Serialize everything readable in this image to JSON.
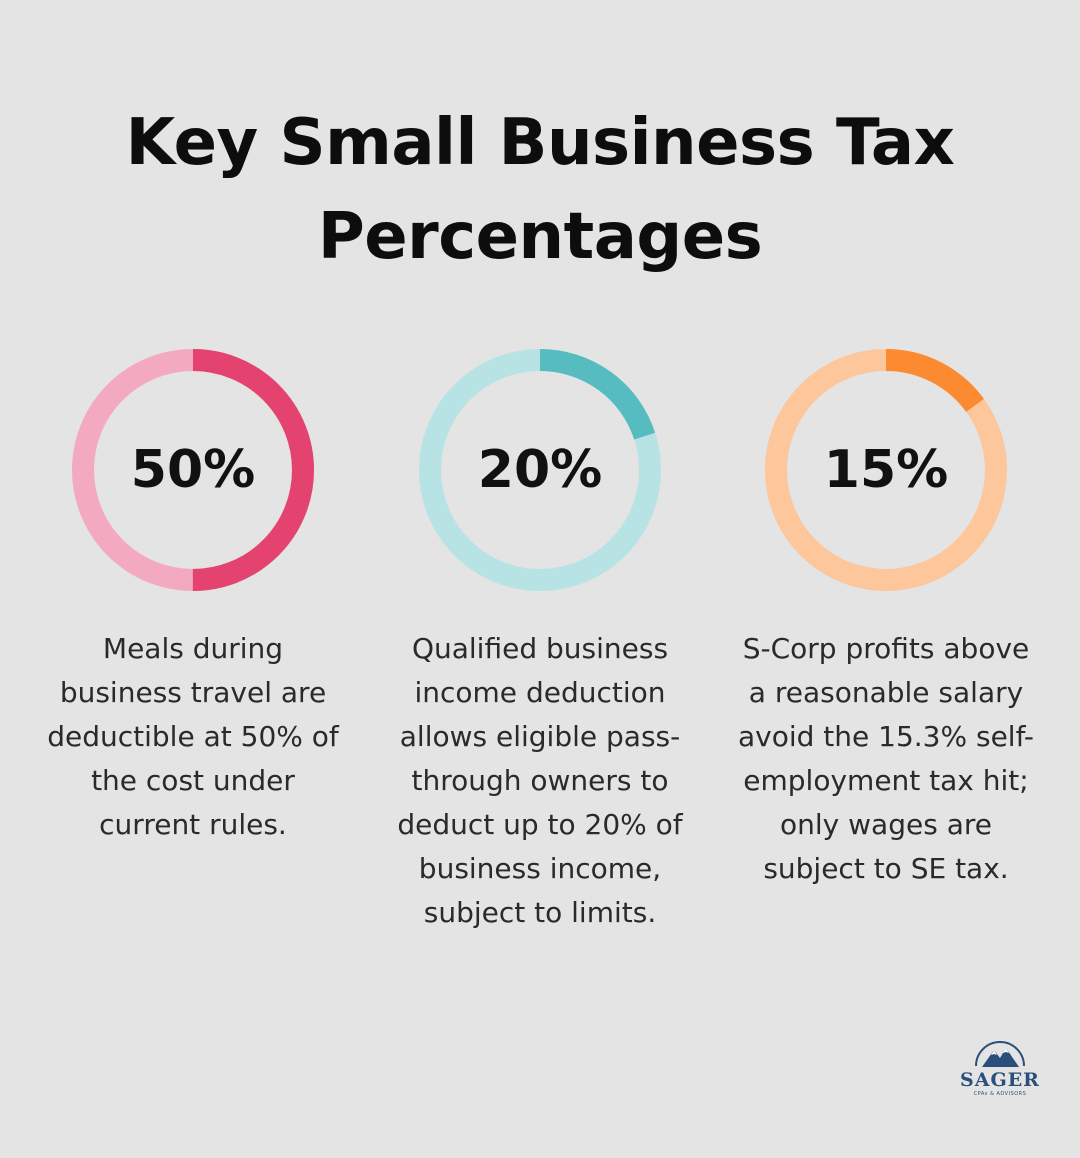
{
  "title_line1": "Key Small Business Tax",
  "title_line2": "Percentages",
  "chart_data": {
    "type": "pie",
    "items": [
      {
        "label": "50%",
        "value": 50,
        "description": "Meals during business travel are deductible at 50% of the cost under current rules.",
        "color": "#e4426f",
        "track_color": "#f3aac1"
      },
      {
        "label": "20%",
        "value": 20,
        "description": "Qualified business income deduction allows eligible pass-through owners to deduct up to 20% of business income, subject to limits.",
        "color": "#56bcbf",
        "track_color": "#b8e3e4"
      },
      {
        "label": "15%",
        "value": 15,
        "description": "S-Corp profits above a reasonable salary avoid the 15.3% self-employment tax hit; only wages are subject to SE tax.",
        "color": "#fb8a30",
        "track_color": "#fec69b"
      }
    ]
  },
  "logo": {
    "name": "SAGER",
    "tagline": "CPAs & ADVISORS",
    "icon": "mountain-icon",
    "color": "#2a4f7a"
  }
}
